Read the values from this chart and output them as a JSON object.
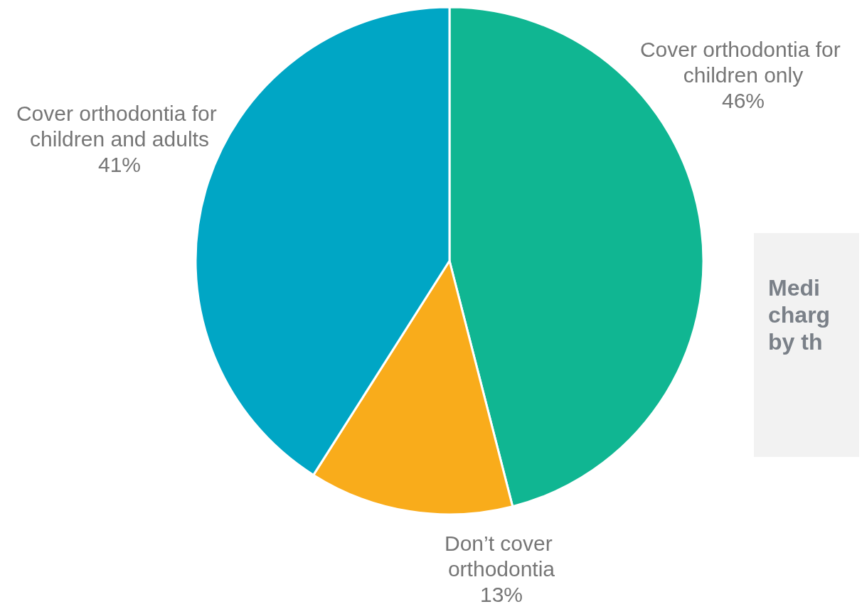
{
  "chart_data": {
    "type": "pie",
    "categories": [
      "Cover orthodontia for children only",
      "Don’t cover orthodontia",
      "Cover orthodontia for children and adults"
    ],
    "values": [
      46,
      13,
      41
    ],
    "value_labels": [
      "46%",
      "13%",
      "41%"
    ],
    "colors": [
      "#10b692",
      "#f9ac1b",
      "#00a6c5"
    ],
    "legend": false,
    "annotations": [
      "Medi\ncharg\nby th"
    ]
  }
}
